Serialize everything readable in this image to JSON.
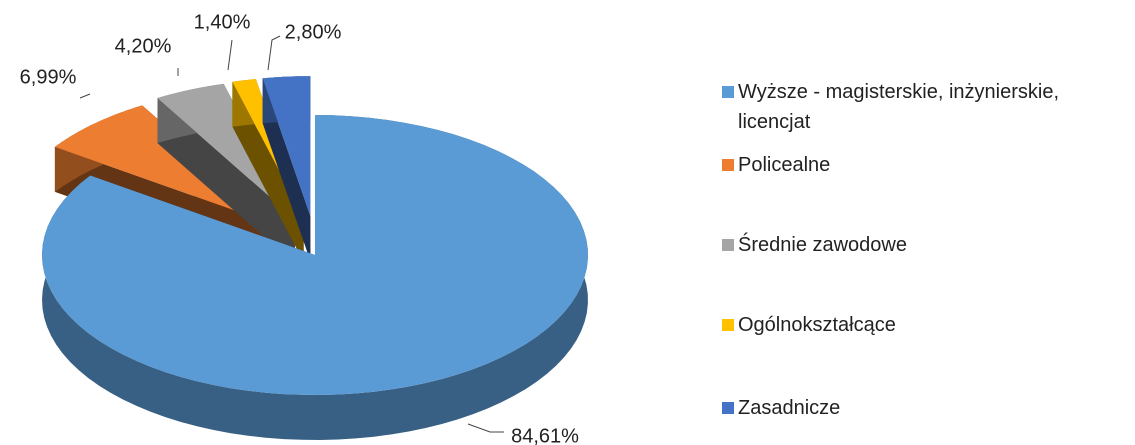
{
  "chart_data": {
    "type": "pie",
    "categories": [
      "Wyższe - magisterskie, inżynierskie, licencjat",
      "Policealne",
      "Średnie zawodowe",
      "Ogólnokształcące",
      "Zasadnicze"
    ],
    "values": [
      84.61,
      6.99,
      4.2,
      1.4,
      2.8
    ],
    "value_labels": [
      "84,61%",
      "6,99%",
      "4,20%",
      "1,40%",
      "2,80%"
    ],
    "colors": [
      "#5b9bd5",
      "#ed7d31",
      "#a5a5a5",
      "#ffc000",
      "#4472c4"
    ],
    "legend": "right"
  }
}
